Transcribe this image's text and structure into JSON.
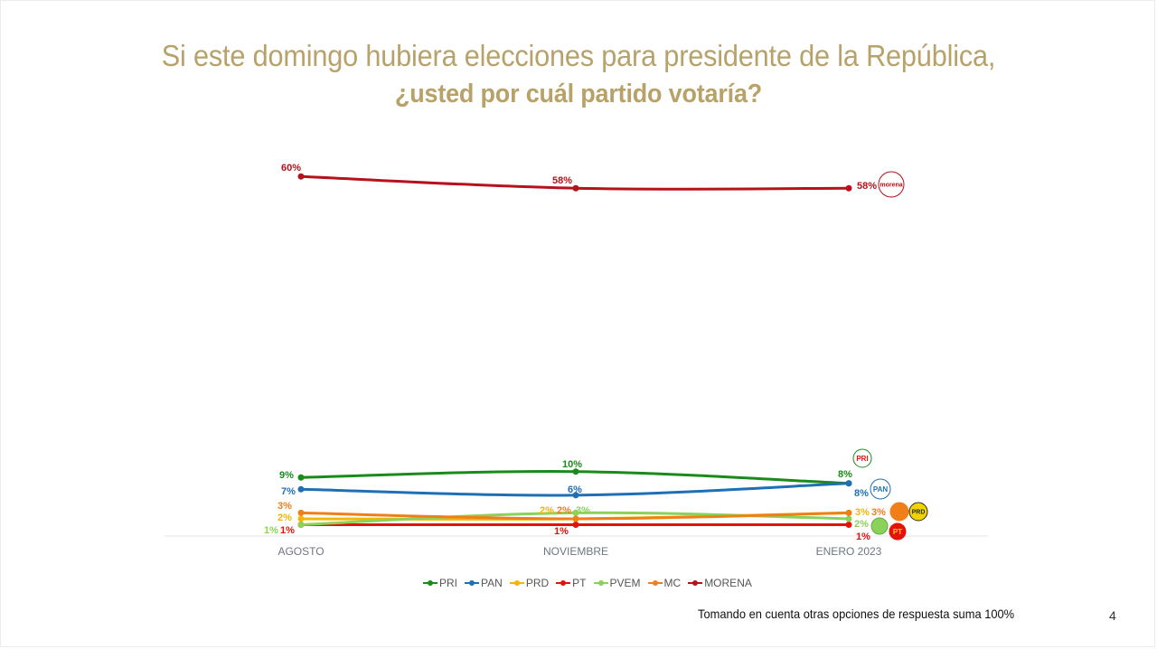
{
  "title": {
    "line1": "Si este domingo hubiera elecciones para presidente de la República,",
    "line2": "¿usted por cuál partido votaría?"
  },
  "footnote": "Tomando en cuenta otras opciones de respuesta suma 100%",
  "page_number": "4",
  "chart_data": {
    "type": "line",
    "categories": [
      "AGOSTO",
      "NOVIEMBRE",
      "ENERO 2023"
    ],
    "ylim": [
      0,
      62
    ],
    "grid": false,
    "legend_placement": "bottom",
    "series": [
      {
        "name": "PRI",
        "color": "#1a8a1a",
        "values": [
          9,
          10,
          8
        ],
        "labels": [
          "9%",
          "10%",
          "8%"
        ],
        "icon": "pri-logo-icon"
      },
      {
        "name": "PAN",
        "color": "#1f6fb5",
        "values": [
          7,
          6,
          8
        ],
        "labels": [
          "7%",
          "6%",
          "8%"
        ],
        "icon": "pan-logo-icon"
      },
      {
        "name": "PRD",
        "color": "#f2b705",
        "values": [
          2,
          2,
          3
        ],
        "labels": [
          "2%",
          "2%",
          "3%"
        ],
        "icon": "prd-logo-icon"
      },
      {
        "name": "PT",
        "color": "#e3120b",
        "values": [
          1,
          1,
          1
        ],
        "labels": [
          "1%",
          "1%",
          "1%"
        ],
        "icon": "pt-logo-icon"
      },
      {
        "name": "PVEM",
        "color": "#8cd15a",
        "values": [
          1,
          3,
          2
        ],
        "labels": [
          "1%",
          "3%",
          "2%"
        ],
        "icon": "pvem-logo-icon"
      },
      {
        "name": "MC",
        "color": "#f07f1a",
        "values": [
          3,
          2,
          3
        ],
        "labels": [
          "3%",
          "2%",
          "3%"
        ],
        "icon": "mc-logo-icon"
      },
      {
        "name": "MORENA",
        "color": "#b5121b",
        "values": [
          60,
          58,
          58
        ],
        "labels": [
          "60%",
          "58%",
          "58%"
        ],
        "icon": "morena-logo-icon"
      }
    ],
    "logo_text": {
      "pri": "PRI",
      "pan": "PAN",
      "prd": "PRD",
      "pt": "PT",
      "morena": "morena"
    }
  }
}
